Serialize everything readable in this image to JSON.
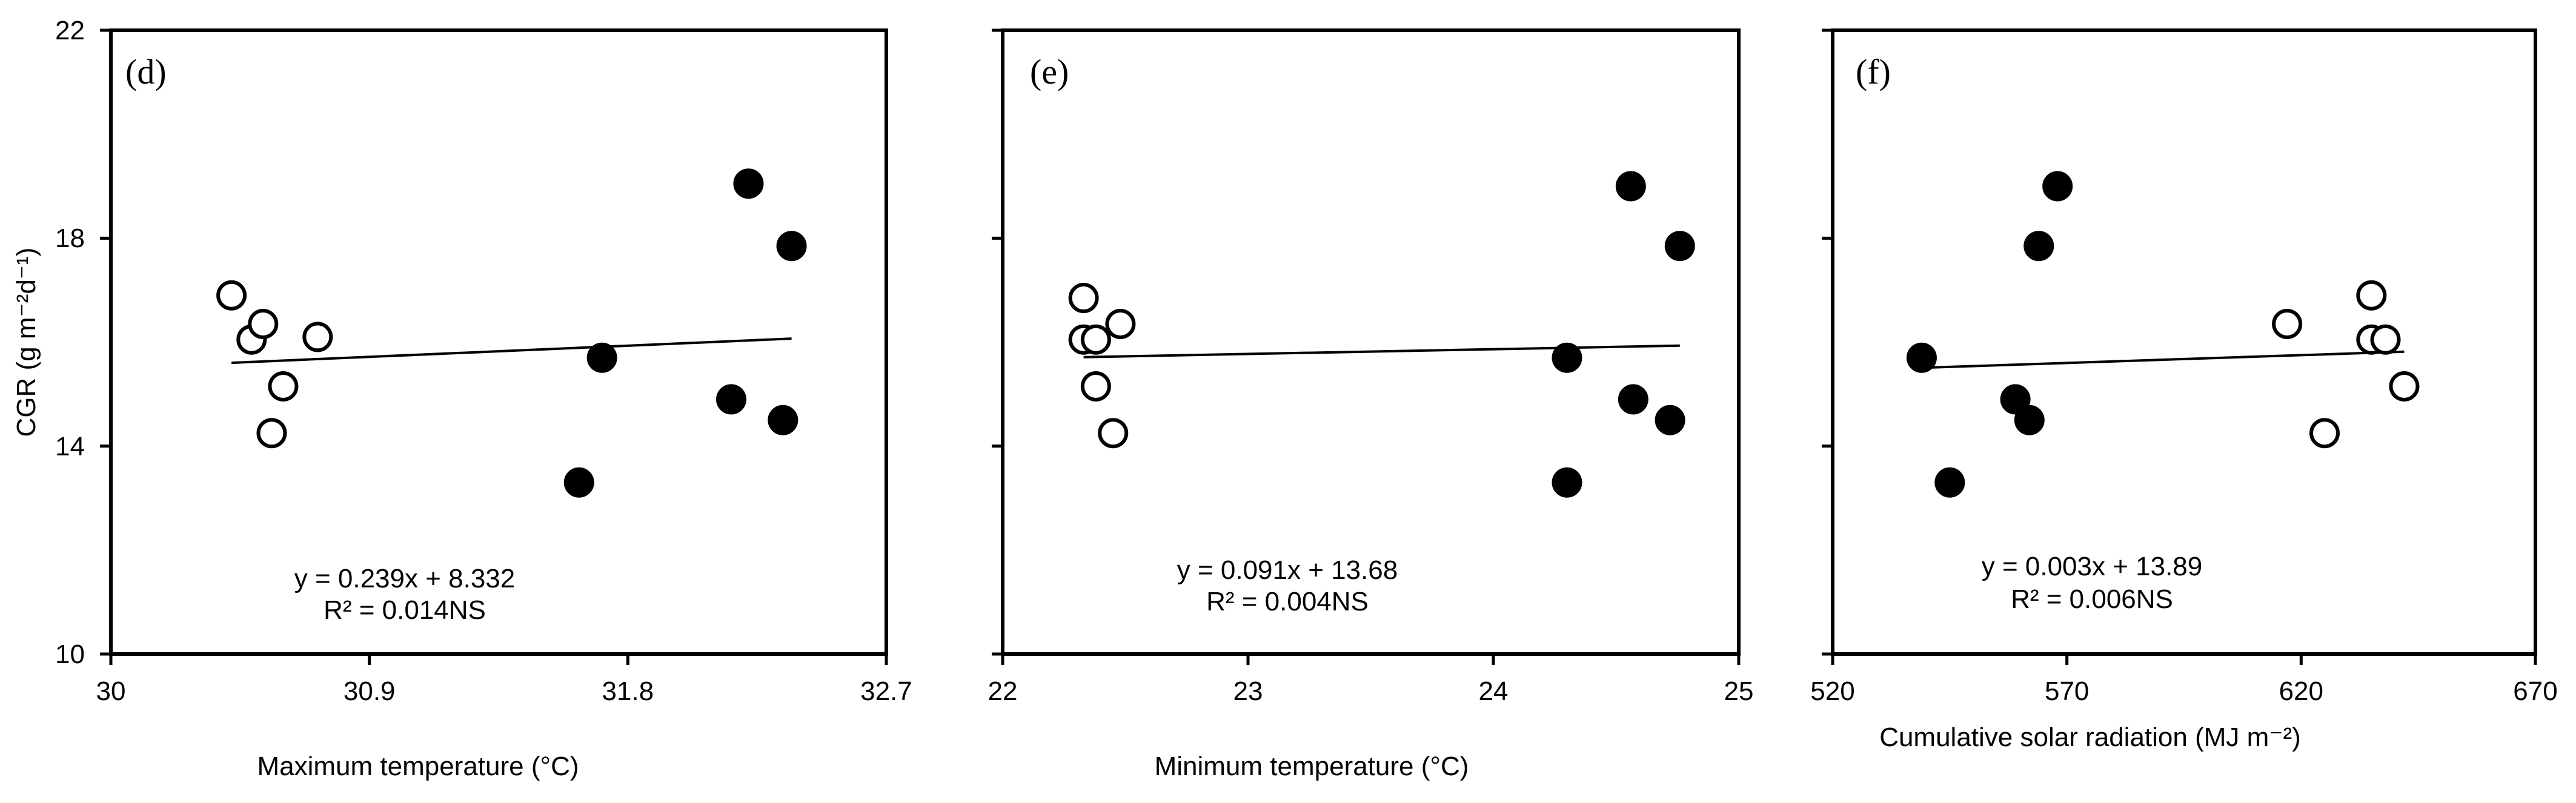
{
  "chart_data": [
    {
      "type": "scatter",
      "panel_label": "(d)",
      "ylabel": "CGR (g m⁻²d⁻¹)",
      "xlabel": "Maximum temperature (°C)",
      "xlim": [
        30,
        32.7
      ],
      "ylim": [
        10,
        22
      ],
      "xticks": [
        "30",
        "30.9",
        "31.8",
        "32.7"
      ],
      "yticks": [
        "10",
        "14",
        "18",
        "22"
      ],
      "series": [
        {
          "name": "open",
          "marker": "open-circle",
          "points": [
            [
              30.42,
              16.9
            ],
            [
              30.49,
              16.05
            ],
            [
              30.53,
              16.35
            ],
            [
              30.56,
              14.25
            ],
            [
              30.6,
              15.15
            ],
            [
              30.72,
              16.1
            ]
          ]
        },
        {
          "name": "filled",
          "marker": "filled-circle",
          "points": [
            [
              31.63,
              13.3
            ],
            [
              31.71,
              15.7
            ],
            [
              32.16,
              14.9
            ],
            [
              32.22,
              19.05
            ],
            [
              32.34,
              14.5
            ],
            [
              32.37,
              17.85
            ]
          ]
        }
      ],
      "trendline": {
        "x": [
          30.42,
          32.37
        ],
        "slope": 0.239,
        "intercept": 8.332
      },
      "equation": "y = 0.239x + 8.332",
      "r2": "R² = 0.014NS"
    },
    {
      "type": "scatter",
      "panel_label": "(e)",
      "xlabel": "Minimum temperature (°C)",
      "xlim": [
        22,
        25
      ],
      "ylim": [
        10,
        22
      ],
      "xticks": [
        "22",
        "23",
        "24",
        "25"
      ],
      "yticks": [
        "10",
        "14",
        "18",
        "22"
      ],
      "series": [
        {
          "name": "open",
          "marker": "open-circle",
          "points": [
            [
              22.33,
              16.85
            ],
            [
              22.33,
              16.05
            ],
            [
              22.38,
              16.05
            ],
            [
              22.38,
              15.15
            ],
            [
              22.45,
              14.25
            ],
            [
              22.48,
              16.35
            ]
          ]
        },
        {
          "name": "filled",
          "marker": "filled-circle",
          "points": [
            [
              24.3,
              15.7
            ],
            [
              24.3,
              13.3
            ],
            [
              24.56,
              19.0
            ],
            [
              24.57,
              14.9
            ],
            [
              24.72,
              14.5
            ],
            [
              24.76,
              17.85
            ]
          ]
        }
      ],
      "trendline": {
        "x": [
          22.33,
          24.76
        ],
        "slope": 0.091,
        "intercept": 13.68
      },
      "equation": "y = 0.091x + 13.68",
      "r2": "R² = 0.004NS"
    },
    {
      "type": "scatter",
      "panel_label": "(f)",
      "xlabel": "Cumulative solar radiation (MJ m⁻²)",
      "xlim": [
        520,
        670
      ],
      "ylim": [
        10,
        22
      ],
      "xticks": [
        "520",
        "570",
        "620",
        "670"
      ],
      "yticks": [
        "10",
        "14",
        "18",
        "22"
      ],
      "series": [
        {
          "name": "filled",
          "marker": "filled-circle",
          "points": [
            [
              539,
              15.7
            ],
            [
              545,
              13.3
            ],
            [
              559,
              14.9
            ],
            [
              562,
              14.5
            ],
            [
              564,
              17.85
            ],
            [
              568,
              19.0
            ]
          ]
        },
        {
          "name": "open",
          "marker": "open-circle",
          "points": [
            [
              617,
              16.35
            ],
            [
              625,
              14.25
            ],
            [
              635,
              16.9
            ],
            [
              635,
              16.05
            ],
            [
              638,
              16.05
            ],
            [
              642,
              15.15
            ]
          ]
        }
      ],
      "trendline": {
        "x": [
          539,
          642
        ],
        "slope": 0.003,
        "intercept": 13.89
      },
      "equation": "y = 0.003x + 13.89",
      "r2": "R² = 0.006NS"
    }
  ]
}
